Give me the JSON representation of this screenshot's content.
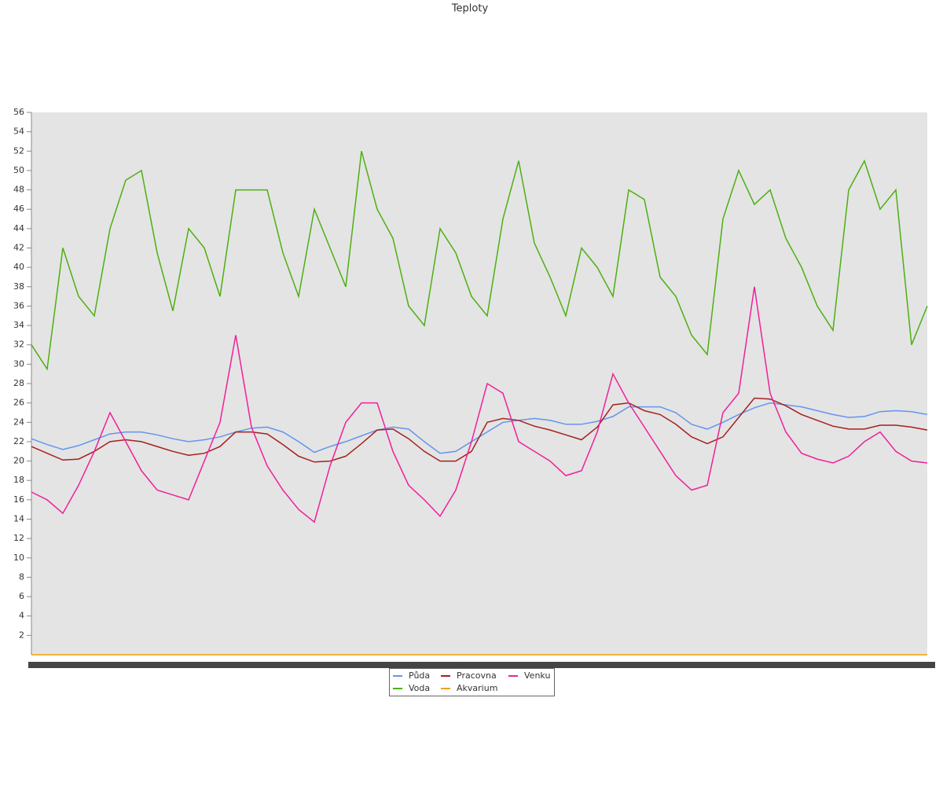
{
  "chart_data": {
    "type": "line",
    "title": "Teploty",
    "ylim": [
      0,
      56
    ],
    "yticks": [
      2,
      4,
      6,
      8,
      10,
      12,
      14,
      16,
      18,
      20,
      22,
      24,
      26,
      28,
      30,
      32,
      34,
      36,
      38,
      40,
      42,
      44,
      46,
      48,
      50,
      52,
      54,
      56
    ],
    "legend": "bottom",
    "series": [
      {
        "name": "Půda",
        "color": "#6495ed",
        "values": [
          22.3,
          21.7,
          21.2,
          21.6,
          22.2,
          22.8,
          23,
          23,
          22.7,
          22.3,
          22,
          22.2,
          22.5,
          23,
          23.4,
          23.5,
          23,
          22,
          20.9,
          21.5,
          22,
          22.6,
          23.2,
          23.5,
          23.3,
          22,
          20.8,
          21,
          22,
          23,
          24,
          24.2,
          24.4,
          24.2,
          23.8,
          23.8,
          24.1,
          24.6,
          25.6,
          25.6,
          25.6,
          25,
          23.8,
          23.3,
          24,
          24.8,
          25.5,
          26,
          25.8,
          25.6,
          25.2,
          24.8,
          24.5,
          24.6,
          25.1,
          25.2,
          25.1,
          24.8
        ]
      },
      {
        "name": "Pracovna",
        "color": "#a52020",
        "values": [
          21.5,
          20.8,
          20.1,
          20.2,
          21,
          22,
          22.2,
          22,
          21.5,
          21,
          20.6,
          20.8,
          21.5,
          23,
          23,
          22.8,
          21.7,
          20.5,
          19.9,
          20,
          20.5,
          21.8,
          23.2,
          23.3,
          22.3,
          21,
          20,
          20,
          21,
          24,
          24.4,
          24.2,
          23.6,
          23.2,
          22.7,
          22.2,
          23.5,
          25.8,
          26,
          25.2,
          24.8,
          23.8,
          22.5,
          21.8,
          22.5,
          24.5,
          26.5,
          26.4,
          25.7,
          24.8,
          24.2,
          23.6,
          23.3,
          23.3,
          23.7,
          23.7,
          23.5,
          23.2
        ]
      },
      {
        "name": "Venku",
        "color": "#f0209a",
        "values": [
          16.8,
          16,
          14.6,
          17.5,
          21,
          25,
          22,
          19,
          17,
          16.5,
          16,
          20,
          24,
          33,
          23.5,
          19.5,
          17,
          15,
          13.7,
          19.5,
          24,
          26,
          26,
          21,
          17.5,
          16,
          14.3,
          17,
          22,
          28,
          27,
          22,
          21,
          20,
          18.5,
          19,
          23,
          29,
          26,
          23.5,
          21,
          18.5,
          17,
          17.5,
          25,
          27,
          38,
          27,
          23,
          20.8,
          20.2,
          19.8,
          20.5,
          22,
          23,
          21,
          20,
          19.8
        ]
      },
      {
        "name": "Voda",
        "color": "#4cb010",
        "values": [
          32,
          29.5,
          42,
          37,
          35,
          44,
          49,
          50,
          41.5,
          35.5,
          44,
          42,
          37,
          48,
          48,
          48,
          41.5,
          37,
          46,
          42,
          38,
          52,
          46,
          43,
          36,
          34,
          44,
          41.5,
          37,
          35,
          45,
          51,
          42.5,
          39,
          35,
          42,
          40,
          37,
          48,
          47,
          39,
          37,
          33,
          31,
          45,
          50,
          46.5,
          48,
          43,
          40,
          36,
          33.5,
          48,
          51,
          46,
          48,
          32,
          36
        ]
      },
      {
        "name": "Akvarium",
        "color": "#f0a000",
        "values": [
          0,
          0,
          0,
          0,
          0,
          0,
          0,
          0,
          0,
          0,
          0,
          0,
          0,
          0,
          0,
          0,
          0,
          0,
          0,
          0,
          0,
          0,
          0,
          0,
          0,
          0,
          0,
          0,
          0,
          0,
          0,
          0,
          0,
          0,
          0,
          0,
          0,
          0,
          0,
          0,
          0,
          0,
          0,
          0,
          0,
          0,
          0,
          0,
          0,
          0,
          0,
          0,
          0,
          0,
          0,
          0,
          0,
          0
        ]
      }
    ]
  }
}
